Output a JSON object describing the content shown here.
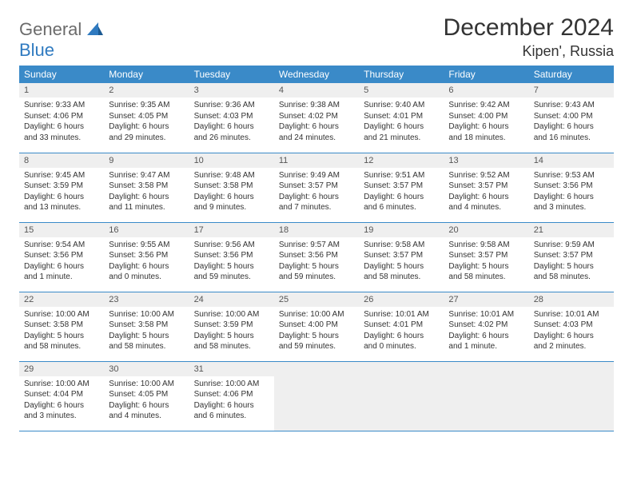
{
  "brand": {
    "part1": "General",
    "part2": "Blue"
  },
  "title": "December 2024",
  "location": "Kipen', Russia",
  "colors": {
    "header_bg": "#3a8ac8",
    "daynum_bg": "#efefef",
    "accent": "#2f7ac0"
  },
  "weekdays": [
    "Sunday",
    "Monday",
    "Tuesday",
    "Wednesday",
    "Thursday",
    "Friday",
    "Saturday"
  ],
  "days": [
    {
      "n": "1",
      "sr": "Sunrise: 9:33 AM",
      "ss": "Sunset: 4:06 PM",
      "d1": "Daylight: 6 hours",
      "d2": "and 33 minutes."
    },
    {
      "n": "2",
      "sr": "Sunrise: 9:35 AM",
      "ss": "Sunset: 4:05 PM",
      "d1": "Daylight: 6 hours",
      "d2": "and 29 minutes."
    },
    {
      "n": "3",
      "sr": "Sunrise: 9:36 AM",
      "ss": "Sunset: 4:03 PM",
      "d1": "Daylight: 6 hours",
      "d2": "and 26 minutes."
    },
    {
      "n": "4",
      "sr": "Sunrise: 9:38 AM",
      "ss": "Sunset: 4:02 PM",
      "d1": "Daylight: 6 hours",
      "d2": "and 24 minutes."
    },
    {
      "n": "5",
      "sr": "Sunrise: 9:40 AM",
      "ss": "Sunset: 4:01 PM",
      "d1": "Daylight: 6 hours",
      "d2": "and 21 minutes."
    },
    {
      "n": "6",
      "sr": "Sunrise: 9:42 AM",
      "ss": "Sunset: 4:00 PM",
      "d1": "Daylight: 6 hours",
      "d2": "and 18 minutes."
    },
    {
      "n": "7",
      "sr": "Sunrise: 9:43 AM",
      "ss": "Sunset: 4:00 PM",
      "d1": "Daylight: 6 hours",
      "d2": "and 16 minutes."
    },
    {
      "n": "8",
      "sr": "Sunrise: 9:45 AM",
      "ss": "Sunset: 3:59 PM",
      "d1": "Daylight: 6 hours",
      "d2": "and 13 minutes."
    },
    {
      "n": "9",
      "sr": "Sunrise: 9:47 AM",
      "ss": "Sunset: 3:58 PM",
      "d1": "Daylight: 6 hours",
      "d2": "and 11 minutes."
    },
    {
      "n": "10",
      "sr": "Sunrise: 9:48 AM",
      "ss": "Sunset: 3:58 PM",
      "d1": "Daylight: 6 hours",
      "d2": "and 9 minutes."
    },
    {
      "n": "11",
      "sr": "Sunrise: 9:49 AM",
      "ss": "Sunset: 3:57 PM",
      "d1": "Daylight: 6 hours",
      "d2": "and 7 minutes."
    },
    {
      "n": "12",
      "sr": "Sunrise: 9:51 AM",
      "ss": "Sunset: 3:57 PM",
      "d1": "Daylight: 6 hours",
      "d2": "and 6 minutes."
    },
    {
      "n": "13",
      "sr": "Sunrise: 9:52 AM",
      "ss": "Sunset: 3:57 PM",
      "d1": "Daylight: 6 hours",
      "d2": "and 4 minutes."
    },
    {
      "n": "14",
      "sr": "Sunrise: 9:53 AM",
      "ss": "Sunset: 3:56 PM",
      "d1": "Daylight: 6 hours",
      "d2": "and 3 minutes."
    },
    {
      "n": "15",
      "sr": "Sunrise: 9:54 AM",
      "ss": "Sunset: 3:56 PM",
      "d1": "Daylight: 6 hours",
      "d2": "and 1 minute."
    },
    {
      "n": "16",
      "sr": "Sunrise: 9:55 AM",
      "ss": "Sunset: 3:56 PM",
      "d1": "Daylight: 6 hours",
      "d2": "and 0 minutes."
    },
    {
      "n": "17",
      "sr": "Sunrise: 9:56 AM",
      "ss": "Sunset: 3:56 PM",
      "d1": "Daylight: 5 hours",
      "d2": "and 59 minutes."
    },
    {
      "n": "18",
      "sr": "Sunrise: 9:57 AM",
      "ss": "Sunset: 3:56 PM",
      "d1": "Daylight: 5 hours",
      "d2": "and 59 minutes."
    },
    {
      "n": "19",
      "sr": "Sunrise: 9:58 AM",
      "ss": "Sunset: 3:57 PM",
      "d1": "Daylight: 5 hours",
      "d2": "and 58 minutes."
    },
    {
      "n": "20",
      "sr": "Sunrise: 9:58 AM",
      "ss": "Sunset: 3:57 PM",
      "d1": "Daylight: 5 hours",
      "d2": "and 58 minutes."
    },
    {
      "n": "21",
      "sr": "Sunrise: 9:59 AM",
      "ss": "Sunset: 3:57 PM",
      "d1": "Daylight: 5 hours",
      "d2": "and 58 minutes."
    },
    {
      "n": "22",
      "sr": "Sunrise: 10:00 AM",
      "ss": "Sunset: 3:58 PM",
      "d1": "Daylight: 5 hours",
      "d2": "and 58 minutes."
    },
    {
      "n": "23",
      "sr": "Sunrise: 10:00 AM",
      "ss": "Sunset: 3:58 PM",
      "d1": "Daylight: 5 hours",
      "d2": "and 58 minutes."
    },
    {
      "n": "24",
      "sr": "Sunrise: 10:00 AM",
      "ss": "Sunset: 3:59 PM",
      "d1": "Daylight: 5 hours",
      "d2": "and 58 minutes."
    },
    {
      "n": "25",
      "sr": "Sunrise: 10:00 AM",
      "ss": "Sunset: 4:00 PM",
      "d1": "Daylight: 5 hours",
      "d2": "and 59 minutes."
    },
    {
      "n": "26",
      "sr": "Sunrise: 10:01 AM",
      "ss": "Sunset: 4:01 PM",
      "d1": "Daylight: 6 hours",
      "d2": "and 0 minutes."
    },
    {
      "n": "27",
      "sr": "Sunrise: 10:01 AM",
      "ss": "Sunset: 4:02 PM",
      "d1": "Daylight: 6 hours",
      "d2": "and 1 minute."
    },
    {
      "n": "28",
      "sr": "Sunrise: 10:01 AM",
      "ss": "Sunset: 4:03 PM",
      "d1": "Daylight: 6 hours",
      "d2": "and 2 minutes."
    },
    {
      "n": "29",
      "sr": "Sunrise: 10:00 AM",
      "ss": "Sunset: 4:04 PM",
      "d1": "Daylight: 6 hours",
      "d2": "and 3 minutes."
    },
    {
      "n": "30",
      "sr": "Sunrise: 10:00 AM",
      "ss": "Sunset: 4:05 PM",
      "d1": "Daylight: 6 hours",
      "d2": "and 4 minutes."
    },
    {
      "n": "31",
      "sr": "Sunrise: 10:00 AM",
      "ss": "Sunset: 4:06 PM",
      "d1": "Daylight: 6 hours",
      "d2": "and 6 minutes."
    }
  ]
}
